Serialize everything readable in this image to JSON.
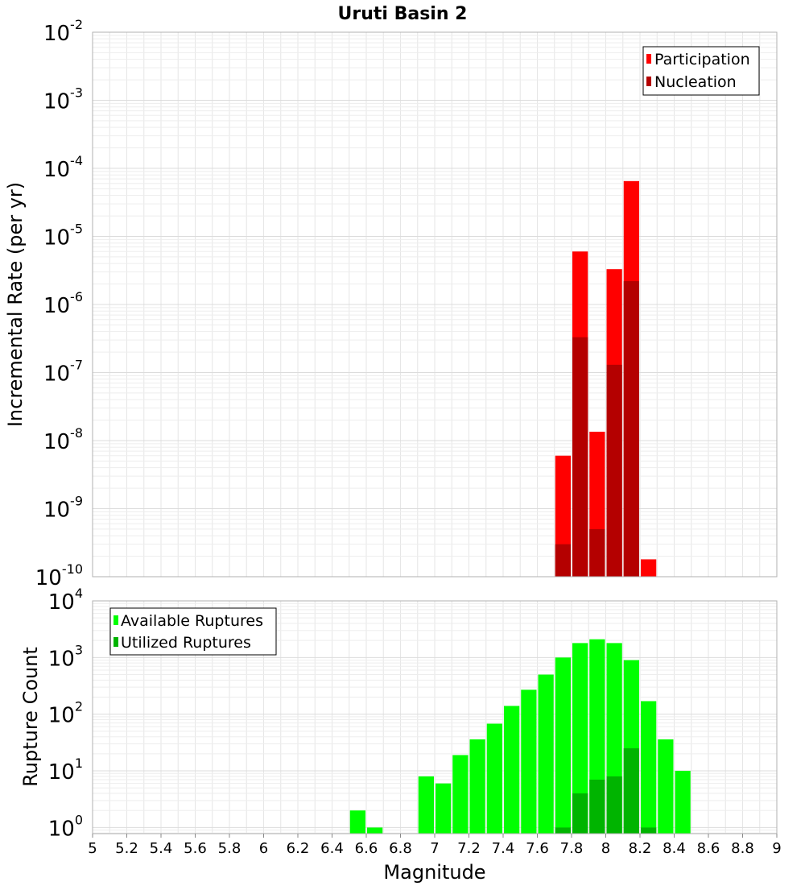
{
  "figure": {
    "title": "Uruti Basin 2",
    "xlabel": "Magnitude"
  },
  "chart_data": [
    {
      "type": "bar",
      "panel": "top",
      "ylabel": "Incremental Rate (per yr)",
      "yscale": "log",
      "ylim": [
        1e-10,
        0.01
      ],
      "xlim": [
        5,
        9
      ],
      "grid": true,
      "legend": "top-right",
      "bar_width": 0.1,
      "x": [
        7.75,
        7.85,
        7.95,
        8.05,
        8.15,
        8.25
      ],
      "series": [
        {
          "name": "Participation",
          "color": "#ff0000",
          "values": [
            6e-09,
            6e-06,
            1.35e-08,
            3.3e-06,
            6.5e-05,
            1.8e-10
          ]
        },
        {
          "name": "Nucleation",
          "color": "#b40000",
          "values": [
            3e-10,
            3.3e-07,
            5e-10,
            1.3e-07,
            2.2e-06,
            null
          ]
        }
      ]
    },
    {
      "type": "bar",
      "panel": "bottom",
      "ylabel": "Rupture Count",
      "yscale": "log",
      "ylim": [
        0.78,
        10000
      ],
      "xlim": [
        5,
        9
      ],
      "grid": true,
      "legend": "top-left",
      "bar_width": 0.1,
      "x": [
        6.55,
        6.65,
        6.95,
        7.05,
        7.15,
        7.25,
        7.35,
        7.45,
        7.55,
        7.65,
        7.75,
        7.85,
        7.95,
        8.05,
        8.15,
        8.25,
        8.35,
        8.45
      ],
      "series": [
        {
          "name": "Available Ruptures",
          "color": "#00ff00",
          "values": [
            2,
            1,
            8,
            6,
            19,
            36,
            68,
            140,
            270,
            500,
            1000,
            1800,
            2100,
            1800,
            900,
            170,
            36,
            10
          ]
        },
        {
          "name": "Utilized Ruptures",
          "color": "#00b400",
          "values": [
            null,
            null,
            null,
            null,
            null,
            null,
            null,
            null,
            null,
            null,
            1,
            4,
            7,
            8,
            25,
            1,
            null,
            null
          ]
        }
      ]
    }
  ],
  "x_ticks": [
    "5",
    "5.2",
    "5.4",
    "5.6",
    "5.8",
    "6",
    "6.2",
    "6.4",
    "6.6",
    "6.8",
    "7",
    "7.2",
    "7.4",
    "7.6",
    "7.8",
    "8",
    "8.2",
    "8.4",
    "8.6",
    "8.8",
    "9"
  ],
  "top_y_ticks": [
    {
      "base": "10",
      "exp": "-2"
    },
    {
      "base": "10",
      "exp": "-3"
    },
    {
      "base": "10",
      "exp": "-4"
    },
    {
      "base": "10",
      "exp": "-5"
    },
    {
      "base": "10",
      "exp": "-6"
    },
    {
      "base": "10",
      "exp": "-7"
    },
    {
      "base": "10",
      "exp": "-8"
    },
    {
      "base": "10",
      "exp": "-9"
    },
    {
      "base": "10",
      "exp": "-10"
    }
  ],
  "bottom_y_ticks": [
    {
      "base": "10",
      "exp": "4"
    },
    {
      "base": "10",
      "exp": "3"
    },
    {
      "base": "10",
      "exp": "2"
    },
    {
      "base": "10",
      "exp": "1"
    },
    {
      "base": "10",
      "exp": "0"
    }
  ]
}
